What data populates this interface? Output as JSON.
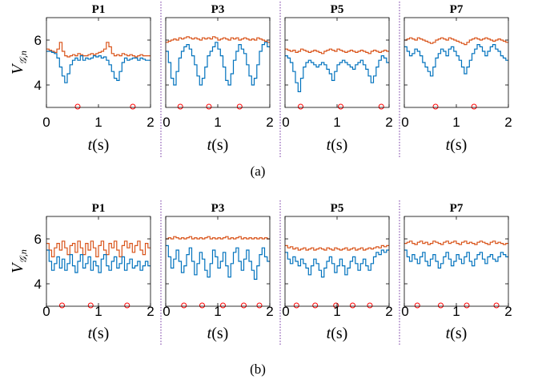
{
  "figure": {
    "caption_a": "(a)",
    "caption_b": "(b)",
    "ylabel": "V",
    "ylabel_sub": "𝒢,n",
    "xlabel_t": "t",
    "xlabel_unit": "(s)"
  },
  "colors": {
    "upper_series": "#D95319",
    "lower_series": "#0072BD",
    "markers": "#FF0000",
    "separator": "#7030A0"
  },
  "chart_data": [
    {
      "panel": "a",
      "type": "line",
      "xlim": [
        0,
        2
      ],
      "ylim": [
        3,
        7
      ],
      "xticks": [
        0,
        1,
        2
      ],
      "yticks": [
        4,
        6
      ],
      "subplots": [
        {
          "title": "P1",
          "x_start": 0,
          "x_step": 0.05,
          "upper": [
            5.6,
            5.55,
            5.5,
            5.45,
            5.6,
            5.9,
            5.5,
            5.3,
            5.25,
            5.3,
            5.35,
            5.3,
            5.4,
            5.35,
            5.3,
            5.3,
            5.35,
            5.4,
            5.35,
            5.4,
            5.45,
            5.5,
            5.6,
            5.9,
            5.7,
            5.4,
            5.3,
            5.35,
            5.3,
            5.4,
            5.35,
            5.3,
            5.35,
            5.3,
            5.25,
            5.3,
            5.35,
            5.3,
            5.3,
            5.3
          ],
          "lower": [
            5.5,
            5.5,
            5.45,
            5.4,
            5.2,
            4.8,
            4.4,
            4.1,
            4.5,
            4.9,
            5.1,
            5.2,
            5.1,
            5.3,
            5.1,
            5.2,
            5.15,
            5.2,
            5.3,
            5.25,
            5.3,
            5.2,
            5.25,
            5.1,
            4.9,
            4.6,
            4.3,
            4.2,
            4.6,
            5.0,
            5.2,
            5.1,
            5.15,
            5.2,
            5.2,
            5.1,
            5.2,
            5.15,
            5.1,
            5.1
          ],
          "markers": [
            0.6,
            1.66
          ]
        },
        {
          "title": "P3",
          "x_start": 0,
          "x_step": 0.05,
          "upper": [
            5.9,
            5.95,
            6.0,
            6.05,
            6.0,
            6.1,
            6.05,
            6.1,
            6.15,
            6.1,
            6.05,
            6.1,
            6.05,
            6.0,
            6.1,
            6.05,
            6.1,
            6.05,
            6.15,
            6.1,
            6.0,
            6.05,
            6.1,
            6.05,
            6.0,
            6.1,
            6.05,
            6.1,
            6.0,
            6.05,
            6.1,
            6.05,
            6.0,
            6.05,
            6.0,
            6.1,
            6.05,
            6.0,
            5.95,
            5.9
          ],
          "lower": [
            5.5,
            5.0,
            4.3,
            4.0,
            4.6,
            5.2,
            5.5,
            5.7,
            5.8,
            5.6,
            5.3,
            4.9,
            4.4,
            4.0,
            4.3,
            4.8,
            5.3,
            5.5,
            5.7,
            5.9,
            5.6,
            5.3,
            4.8,
            4.2,
            4.0,
            4.5,
            5.1,
            5.5,
            5.8,
            5.6,
            5.4,
            4.9,
            4.4,
            4.0,
            4.3,
            4.9,
            5.5,
            5.8,
            5.9,
            5.7
          ],
          "markers": [
            0.28,
            0.83,
            1.42
          ]
        },
        {
          "title": "P5",
          "x_start": 0,
          "x_step": 0.05,
          "upper": [
            5.6,
            5.55,
            5.5,
            5.55,
            5.45,
            5.5,
            5.6,
            5.55,
            5.5,
            5.45,
            5.5,
            5.55,
            5.5,
            5.45,
            5.4,
            5.5,
            5.55,
            5.6,
            5.55,
            5.5,
            5.6,
            5.55,
            5.5,
            5.45,
            5.5,
            5.55,
            5.5,
            5.45,
            5.5,
            5.55,
            5.5,
            5.45,
            5.4,
            5.5,
            5.55,
            5.5,
            5.45,
            5.5,
            5.55,
            5.5
          ],
          "lower": [
            5.3,
            5.2,
            5.0,
            4.6,
            4.1,
            3.7,
            4.3,
            4.8,
            5.0,
            5.1,
            5.0,
            4.9,
            4.8,
            4.9,
            5.0,
            4.9,
            4.7,
            4.5,
            4.2,
            4.6,
            4.9,
            5.0,
            5.1,
            5.0,
            4.9,
            4.8,
            4.7,
            4.9,
            5.0,
            5.1,
            4.9,
            4.7,
            4.4,
            4.1,
            4.4,
            4.8,
            5.1,
            5.3,
            5.2,
            5.0
          ],
          "markers": [
            0.3,
            1.07,
            1.85
          ]
        },
        {
          "title": "P7",
          "x_start": 0,
          "x_step": 0.05,
          "upper": [
            6.0,
            6.05,
            6.1,
            6.05,
            6.0,
            6.1,
            6.05,
            6.0,
            5.95,
            5.9,
            5.85,
            5.9,
            6.0,
            6.05,
            6.1,
            6.05,
            6.0,
            6.1,
            6.05,
            6.0,
            5.95,
            5.9,
            5.85,
            5.8,
            5.9,
            6.0,
            6.05,
            6.1,
            6.05,
            6.0,
            6.05,
            6.1,
            6.05,
            6.0,
            5.95,
            6.0,
            6.05,
            6.0,
            5.95,
            5.9
          ],
          "lower": [
            5.7,
            5.5,
            5.3,
            5.4,
            5.6,
            5.5,
            5.3,
            5.0,
            4.8,
            4.6,
            4.4,
            4.8,
            5.2,
            5.4,
            5.6,
            5.5,
            5.3,
            5.6,
            5.7,
            5.5,
            5.3,
            5.1,
            4.8,
            4.5,
            4.8,
            5.1,
            5.4,
            5.6,
            5.8,
            5.7,
            5.5,
            5.3,
            5.5,
            5.7,
            5.8,
            5.6,
            5.5,
            5.3,
            5.2,
            5.1
          ],
          "markers": [
            0.6,
            1.34
          ]
        }
      ]
    },
    {
      "panel": "b",
      "type": "line",
      "xlim": [
        0,
        2
      ],
      "ylim": [
        3,
        7
      ],
      "xticks": [
        0,
        1,
        2
      ],
      "yticks": [
        4,
        6
      ],
      "subplots": [
        {
          "title": "P1",
          "x_start": 0,
          "x_step": 0.05,
          "upper": [
            5.8,
            5.5,
            5.2,
            5.6,
            5.8,
            5.5,
            5.9,
            5.6,
            5.3,
            5.7,
            5.8,
            5.4,
            5.9,
            5.6,
            5.3,
            5.8,
            5.5,
            5.9,
            5.6,
            5.2,
            5.7,
            5.9,
            5.5,
            5.3,
            5.8,
            5.6,
            5.9,
            5.5,
            5.2,
            5.7,
            5.9,
            5.6,
            5.8,
            5.4,
            5.7,
            5.9,
            5.5,
            5.3,
            5.8,
            5.6
          ],
          "lower": [
            5.5,
            5.0,
            4.6,
            4.9,
            5.2,
            4.7,
            5.1,
            4.6,
            4.9,
            5.3,
            4.8,
            4.5,
            5.0,
            5.3,
            4.7,
            4.9,
            5.2,
            4.6,
            5.0,
            4.8,
            4.5,
            5.1,
            5.3,
            4.8,
            4.6,
            5.0,
            5.2,
            4.7,
            4.9,
            5.2,
            4.6,
            4.9,
            5.1,
            4.7,
            4.8,
            5.0,
            4.6,
            4.8,
            5.0,
            4.8
          ],
          "markers": [
            0.3,
            0.85,
            1.55
          ]
        },
        {
          "title": "P3",
          "x_start": 0,
          "x_step": 0.05,
          "upper": [
            6.0,
            6.05,
            6.0,
            6.1,
            6.05,
            6.0,
            6.05,
            6.0,
            6.05,
            6.1,
            6.0,
            6.05,
            6.0,
            6.05,
            6.0,
            6.05,
            6.1,
            6.0,
            6.05,
            6.0,
            6.05,
            6.0,
            6.05,
            6.1,
            6.0,
            6.05,
            6.0,
            6.05,
            6.1,
            6.0,
            6.05,
            6.0,
            6.05,
            6.0,
            6.05,
            6.0,
            6.05,
            6.0,
            6.05,
            6.0
          ],
          "lower": [
            5.7,
            5.2,
            4.7,
            5.1,
            5.5,
            5.0,
            4.5,
            4.8,
            5.3,
            5.6,
            5.0,
            4.4,
            4.9,
            5.4,
            5.1,
            4.6,
            4.3,
            4.9,
            5.5,
            5.2,
            4.7,
            5.0,
            5.4,
            4.8,
            4.3,
            4.9,
            5.4,
            5.6,
            5.0,
            4.6,
            5.1,
            5.5,
            5.0,
            4.6,
            4.2,
            4.8,
            5.3,
            5.6,
            5.2,
            5.0
          ],
          "markers": [
            0.35,
            0.7,
            1.1,
            1.5,
            1.8
          ]
        },
        {
          "title": "P5",
          "x_start": 0,
          "x_step": 0.05,
          "upper": [
            5.7,
            5.6,
            5.65,
            5.55,
            5.6,
            5.5,
            5.55,
            5.6,
            5.5,
            5.55,
            5.6,
            5.5,
            5.55,
            5.6,
            5.55,
            5.5,
            5.6,
            5.55,
            5.5,
            5.6,
            5.55,
            5.5,
            5.55,
            5.6,
            5.5,
            5.55,
            5.6,
            5.5,
            5.55,
            5.6,
            5.5,
            5.55,
            5.6,
            5.55,
            5.6,
            5.65,
            5.6,
            5.7,
            5.65,
            5.7
          ],
          "lower": [
            5.4,
            5.1,
            4.9,
            5.2,
            5.0,
            4.8,
            5.1,
            4.9,
            4.7,
            4.4,
            4.8,
            5.1,
            4.9,
            4.6,
            4.3,
            4.7,
            5.0,
            5.2,
            4.9,
            4.5,
            4.8,
            5.1,
            4.8,
            4.4,
            4.7,
            5.0,
            5.2,
            4.9,
            4.6,
            4.9,
            5.1,
            4.8,
            4.6,
            4.9,
            5.2,
            5.4,
            5.3,
            5.5,
            5.4,
            5.5
          ],
          "markers": [
            0.22,
            0.58,
            0.98,
            1.3,
            1.63
          ]
        },
        {
          "title": "P7",
          "x_start": 0,
          "x_step": 0.05,
          "upper": [
            5.8,
            5.85,
            5.9,
            5.8,
            5.75,
            5.85,
            5.9,
            5.8,
            5.85,
            5.75,
            5.8,
            5.9,
            5.85,
            5.8,
            5.75,
            5.85,
            5.9,
            5.8,
            5.85,
            5.9,
            5.8,
            5.75,
            5.85,
            5.9,
            5.8,
            5.85,
            5.8,
            5.75,
            5.85,
            5.9,
            5.85,
            5.8,
            5.75,
            5.85,
            5.9,
            5.8,
            5.85,
            5.8,
            5.75,
            5.8
          ],
          "lower": [
            5.5,
            5.2,
            5.0,
            5.3,
            5.1,
            4.9,
            5.2,
            5.4,
            5.0,
            4.8,
            5.1,
            5.3,
            5.0,
            4.7,
            4.9,
            5.2,
            5.4,
            5.1,
            4.8,
            5.0,
            5.3,
            5.1,
            4.9,
            5.2,
            5.4,
            5.0,
            4.8,
            5.1,
            5.3,
            5.4,
            5.1,
            4.9,
            5.2,
            5.3,
            5.1,
            5.0,
            5.2,
            5.4,
            5.3,
            5.2
          ],
          "markers": [
            0.25,
            0.7,
            1.2,
            1.77
          ]
        }
      ]
    }
  ]
}
